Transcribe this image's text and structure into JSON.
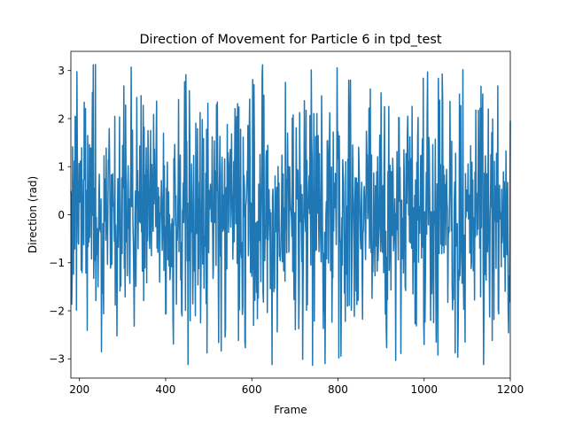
{
  "chart_data": {
    "type": "line",
    "title": "Direction of Movement for Particle 6 in tpd_test",
    "xlabel": "Frame",
    "ylabel": "Direction (rad)",
    "xlim": [
      180,
      1200
    ],
    "ylim": [
      -3.4,
      3.4
    ],
    "xticks": [
      200,
      400,
      600,
      800,
      1000,
      1200
    ],
    "yticks": [
      -3,
      -2,
      -1,
      0,
      1,
      2,
      3
    ],
    "grid": false,
    "legend": "none",
    "series": [
      {
        "color": "#1f77b4",
        "x_start": 180,
        "x_end": 1200,
        "points": 1021,
        "value_range": [
          -3.14,
          3.14
        ],
        "peaks": [
          {
            "x": 232,
            "y": 3.12
          },
          {
            "x": 320,
            "y": 3.07
          },
          {
            "x": 452,
            "y": -3.12
          },
          {
            "x": 625,
            "y": 3.12
          },
          {
            "x": 647,
            "y": -3.12
          },
          {
            "x": 770,
            "y": -3.1
          },
          {
            "x": 1138,
            "y": -3.12
          },
          {
            "x": 1090,
            "y": 3.02
          }
        ]
      }
    ]
  }
}
